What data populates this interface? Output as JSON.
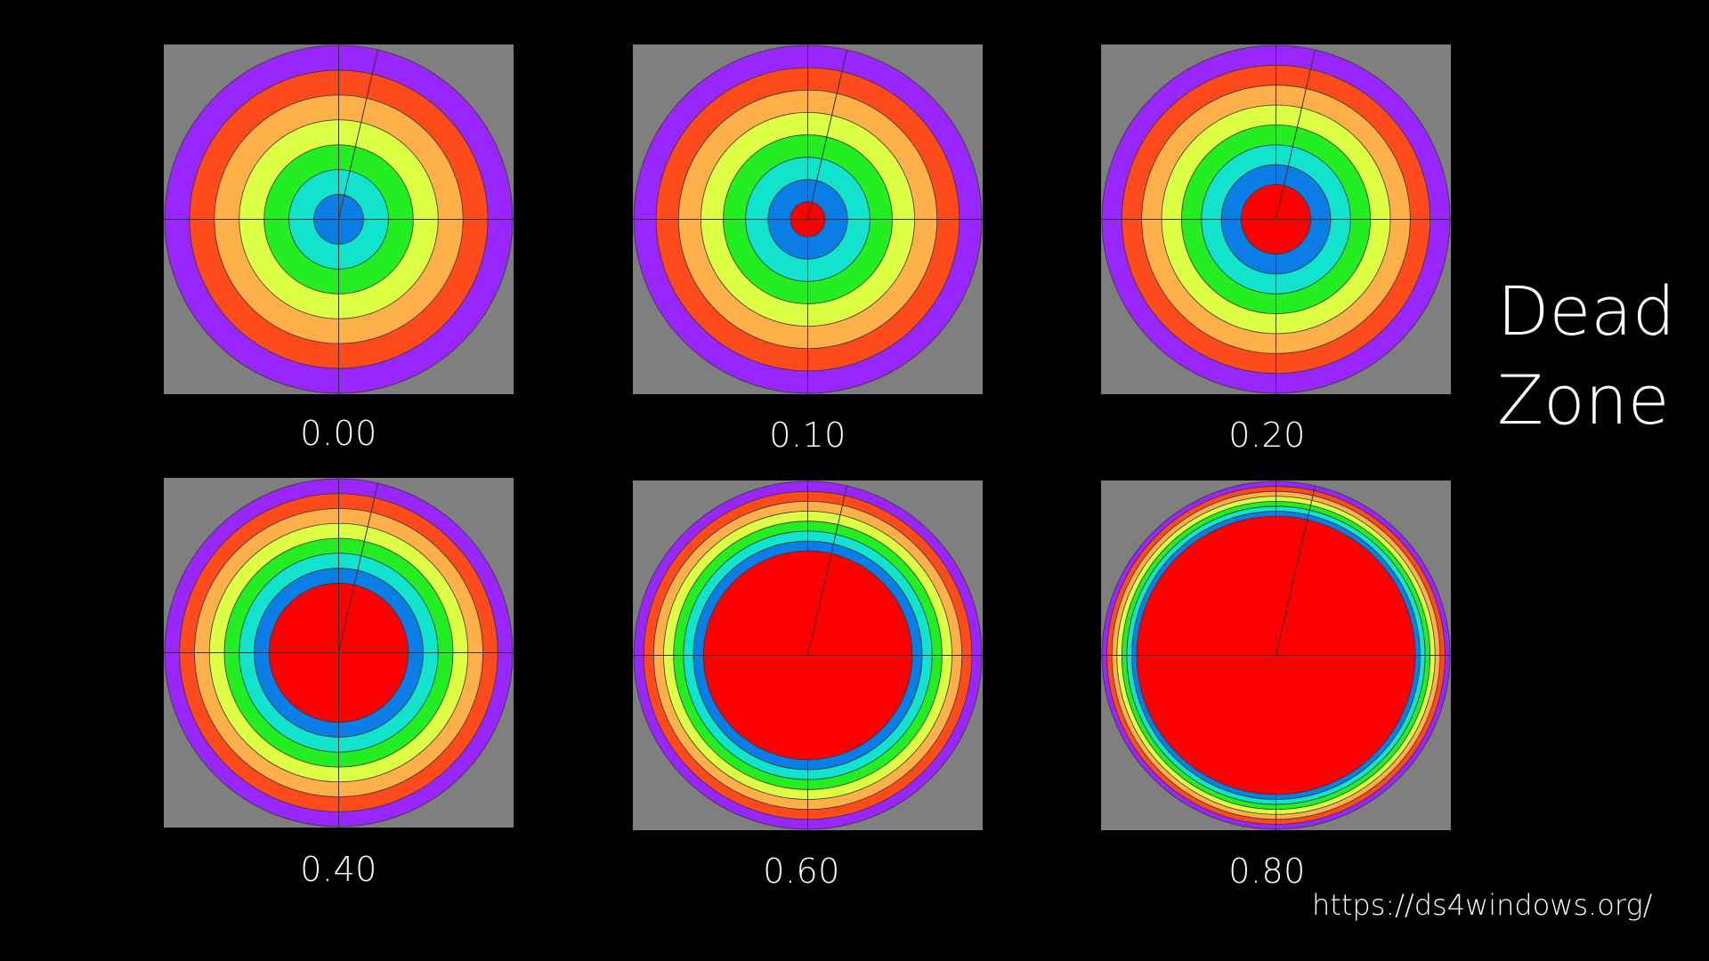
{
  "title": "Dead\nZone",
  "url": "https://ds4windows.org/",
  "ring_colors": [
    "#ff0000",
    "#0a7de6",
    "#11e3cc",
    "#22ee22",
    "#ddff44",
    "#ffb048",
    "#ff4a1c",
    "#9926ff"
  ],
  "outline_color": "#333333",
  "background_color": "#7f7f7f",
  "panels": [
    {
      "label": "0.00",
      "deadzone": 0.0
    },
    {
      "label": "0.10",
      "deadzone": 0.1
    },
    {
      "label": "0.20",
      "deadzone": 0.2
    },
    {
      "label": "0.40",
      "deadzone": 0.4
    },
    {
      "label": "0.60",
      "deadzone": 0.6
    },
    {
      "label": "0.80",
      "deadzone": 0.8
    }
  ]
}
